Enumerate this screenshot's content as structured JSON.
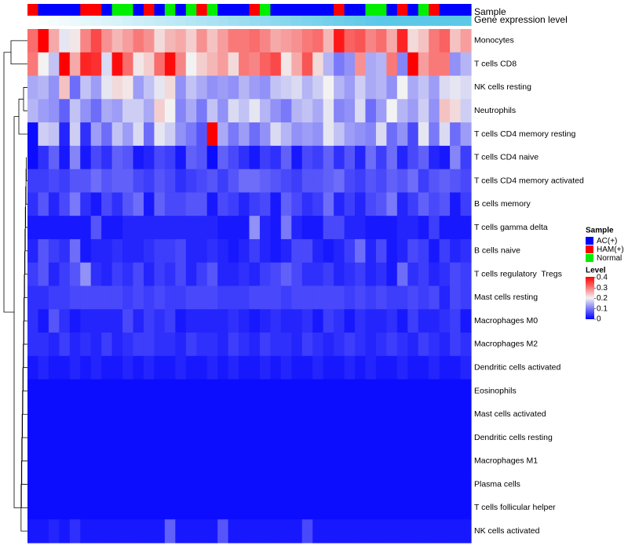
{
  "chart_data": {
    "type": "heatmap",
    "annotations": [
      {
        "name": "Sample",
        "kind": "categorical"
      },
      {
        "name": "Gene expression level",
        "kind": "continuous"
      }
    ],
    "sample_groups": [
      "HAM",
      "AC",
      "AC",
      "AC",
      "AC",
      "HAM",
      "HAM",
      "AC",
      "Normal",
      "Normal",
      "AC",
      "HAM",
      "AC",
      "Normal",
      "AC",
      "Normal",
      "HAM",
      "Normal",
      "AC",
      "AC",
      "AC",
      "HAM",
      "Normal",
      "AC",
      "AC",
      "AC",
      "AC",
      "AC",
      "AC",
      "HAM",
      "AC",
      "AC",
      "Normal",
      "Normal",
      "AC",
      "HAM",
      "AC",
      "Normal",
      "HAM",
      "AC",
      "AC",
      "AC"
    ],
    "expression_gradient": [
      0.0,
      1.0
    ],
    "rows": [
      "Monocytes",
      "T cells CD8",
      "NK cells resting",
      "Neutrophils",
      "T cells CD4 memory resting",
      "T cells CD4 naive",
      "T cells CD4 memory activated",
      "B cells memory",
      "T cells gamma delta",
      "B cells naive",
      "T cells regulatory  Tregs",
      "Mast cells resting",
      "Macrophages M0",
      "Macrophages M2",
      "Dendritic cells activated",
      "Eosinophils",
      "Mast cells activated",
      "Dendritic cells resting",
      "Macrophages M1",
      "Plasma cells",
      "T cells follicular helper",
      "NK cells activated"
    ],
    "values": [
      [
        0.31,
        0.4,
        0.26,
        0.19,
        0.21,
        0.29,
        0.34,
        0.28,
        0.25,
        0.27,
        0.3,
        0.28,
        0.22,
        0.25,
        0.26,
        0.23,
        0.28,
        0.24,
        0.27,
        0.3,
        0.3,
        0.31,
        0.29,
        0.26,
        0.27,
        0.28,
        0.3,
        0.31,
        0.25,
        0.38,
        0.32,
        0.33,
        0.29,
        0.31,
        0.26,
        0.37,
        0.22,
        0.24,
        0.3,
        0.32,
        0.24,
        0.27
      ],
      [
        0.3,
        0.2,
        0.16,
        0.4,
        0.26,
        0.37,
        0.36,
        0.18,
        0.39,
        0.31,
        0.21,
        0.23,
        0.31,
        0.39,
        0.29,
        0.2,
        0.23,
        0.25,
        0.27,
        0.22,
        0.3,
        0.29,
        0.32,
        0.34,
        0.21,
        0.26,
        0.33,
        0.22,
        0.15,
        0.1,
        0.12,
        0.28,
        0.14,
        0.15,
        0.3,
        0.11,
        0.4,
        0.27,
        0.3,
        0.3,
        0.12,
        0.15
      ],
      [
        0.14,
        0.15,
        0.12,
        0.24,
        0.09,
        0.16,
        0.13,
        0.19,
        0.22,
        0.21,
        0.13,
        0.16,
        0.19,
        0.22,
        0.12,
        0.16,
        0.14,
        0.12,
        0.13,
        0.12,
        0.15,
        0.13,
        0.12,
        0.16,
        0.17,
        0.18,
        0.15,
        0.17,
        0.2,
        0.15,
        0.13,
        0.17,
        0.14,
        0.15,
        0.12,
        0.2,
        0.14,
        0.16,
        0.13,
        0.18,
        0.19,
        0.18
      ],
      [
        0.15,
        0.13,
        0.12,
        0.08,
        0.16,
        0.12,
        0.09,
        0.14,
        0.13,
        0.17,
        0.17,
        0.14,
        0.23,
        0.2,
        0.11,
        0.14,
        0.1,
        0.16,
        0.12,
        0.18,
        0.16,
        0.19,
        0.15,
        0.12,
        0.1,
        0.15,
        0.16,
        0.14,
        0.19,
        0.11,
        0.12,
        0.18,
        0.09,
        0.13,
        0.2,
        0.15,
        0.13,
        0.17,
        0.12,
        0.24,
        0.22,
        0.17
      ],
      [
        0.01,
        0.17,
        0.16,
        0.03,
        0.17,
        0.04,
        0.13,
        0.09,
        0.16,
        0.13,
        0.18,
        0.09,
        0.19,
        0.17,
        0.12,
        0.1,
        0.07,
        0.4,
        0.14,
        0.1,
        0.13,
        0.09,
        0.12,
        0.18,
        0.15,
        0.12,
        0.13,
        0.12,
        0.19,
        0.16,
        0.13,
        0.12,
        0.11,
        0.18,
        0.09,
        0.12,
        0.06,
        0.19,
        0.1,
        0.18,
        0.09,
        0.13
      ],
      [
        0.01,
        0.04,
        0.08,
        0.02,
        0.11,
        0.02,
        0.06,
        0.04,
        0.08,
        0.07,
        0.02,
        0.03,
        0.06,
        0.05,
        0.02,
        0.08,
        0.07,
        0.01,
        0.08,
        0.06,
        0.04,
        0.02,
        0.05,
        0.04,
        0.08,
        0.02,
        0.06,
        0.05,
        0.08,
        0.04,
        0.07,
        0.03,
        0.09,
        0.05,
        0.09,
        0.03,
        0.06,
        0.08,
        0.03,
        0.02,
        0.11,
        0.05
      ],
      [
        0.05,
        0.05,
        0.06,
        0.05,
        0.07,
        0.07,
        0.09,
        0.07,
        0.08,
        0.08,
        0.06,
        0.05,
        0.07,
        0.06,
        0.04,
        0.05,
        0.06,
        0.07,
        0.05,
        0.07,
        0.09,
        0.09,
        0.08,
        0.07,
        0.06,
        0.05,
        0.07,
        0.07,
        0.08,
        0.09,
        0.06,
        0.05,
        0.07,
        0.06,
        0.08,
        0.07,
        0.09,
        0.05,
        0.07,
        0.08,
        0.07,
        0.06
      ],
      [
        0.04,
        0.07,
        0.03,
        0.06,
        0.1,
        0.04,
        0.02,
        0.06,
        0.04,
        0.07,
        0.09,
        0.02,
        0.08,
        0.06,
        0.06,
        0.07,
        0.07,
        0.02,
        0.06,
        0.05,
        0.03,
        0.05,
        0.06,
        0.02,
        0.08,
        0.06,
        0.04,
        0.05,
        0.09,
        0.03,
        0.05,
        0.03,
        0.06,
        0.07,
        0.1,
        0.03,
        0.05,
        0.08,
        0.06,
        0.07,
        0.02,
        0.05
      ],
      [
        0.02,
        0.02,
        0.02,
        0.02,
        0.02,
        0.02,
        0.07,
        0.02,
        0.02,
        0.03,
        0.03,
        0.03,
        0.03,
        0.03,
        0.03,
        0.03,
        0.03,
        0.03,
        0.02,
        0.02,
        0.02,
        0.12,
        0.03,
        0.02,
        0.1,
        0.03,
        0.02,
        0.02,
        0.06,
        0.06,
        0.03,
        0.03,
        0.02,
        0.02,
        0.02,
        0.03,
        0.03,
        0.02,
        0.05,
        0.02,
        0.02,
        0.02
      ],
      [
        0.03,
        0.07,
        0.05,
        0.04,
        0.09,
        0.02,
        0.03,
        0.03,
        0.04,
        0.03,
        0.03,
        0.04,
        0.05,
        0.05,
        0.06,
        0.03,
        0.03,
        0.04,
        0.03,
        0.02,
        0.03,
        0.05,
        0.03,
        0.02,
        0.03,
        0.06,
        0.06,
        0.03,
        0.02,
        0.03,
        0.05,
        0.09,
        0.03,
        0.06,
        0.02,
        0.03,
        0.06,
        0.05,
        0.02,
        0.05,
        0.03,
        0.04
      ],
      [
        0.05,
        0.07,
        0.03,
        0.05,
        0.07,
        0.12,
        0.04,
        0.03,
        0.05,
        0.04,
        0.06,
        0.03,
        0.05,
        0.04,
        0.06,
        0.03,
        0.05,
        0.07,
        0.03,
        0.03,
        0.04,
        0.03,
        0.05,
        0.06,
        0.08,
        0.06,
        0.04,
        0.04,
        0.05,
        0.03,
        0.04,
        0.05,
        0.03,
        0.04,
        0.02,
        0.09,
        0.04,
        0.05,
        0.03,
        0.04,
        0.06,
        0.05
      ],
      [
        0.04,
        0.04,
        0.05,
        0.05,
        0.06,
        0.06,
        0.06,
        0.06,
        0.06,
        0.05,
        0.06,
        0.05,
        0.06,
        0.05,
        0.05,
        0.06,
        0.06,
        0.06,
        0.05,
        0.05,
        0.05,
        0.06,
        0.06,
        0.06,
        0.05,
        0.06,
        0.06,
        0.06,
        0.06,
        0.06,
        0.05,
        0.06,
        0.05,
        0.06,
        0.05,
        0.05,
        0.06,
        0.05,
        0.06,
        0.03,
        0.06,
        0.05
      ],
      [
        0.04,
        0.02,
        0.07,
        0.04,
        0.02,
        0.03,
        0.03,
        0.03,
        0.03,
        0.06,
        0.03,
        0.05,
        0.04,
        0.05,
        0.02,
        0.03,
        0.03,
        0.03,
        0.03,
        0.04,
        0.03,
        0.02,
        0.03,
        0.04,
        0.03,
        0.03,
        0.04,
        0.02,
        0.05,
        0.04,
        0.02,
        0.04,
        0.03,
        0.03,
        0.04,
        0.02,
        0.05,
        0.03,
        0.03,
        0.04,
        0.05,
        0.02
      ],
      [
        0.04,
        0.04,
        0.03,
        0.05,
        0.03,
        0.04,
        0.03,
        0.05,
        0.03,
        0.04,
        0.05,
        0.05,
        0.04,
        0.04,
        0.03,
        0.05,
        0.04,
        0.04,
        0.03,
        0.05,
        0.04,
        0.03,
        0.05,
        0.04,
        0.04,
        0.03,
        0.05,
        0.04,
        0.03,
        0.04,
        0.05,
        0.04,
        0.03,
        0.04,
        0.05,
        0.04,
        0.03,
        0.05,
        0.04,
        0.03,
        0.05,
        0.04
      ],
      [
        0.02,
        0.03,
        0.02,
        0.02,
        0.03,
        0.02,
        0.03,
        0.02,
        0.02,
        0.03,
        0.02,
        0.03,
        0.02,
        0.02,
        0.03,
        0.02,
        0.02,
        0.03,
        0.02,
        0.03,
        0.02,
        0.02,
        0.03,
        0.02,
        0.03,
        0.02,
        0.02,
        0.03,
        0.02,
        0.02,
        0.03,
        0.02,
        0.03,
        0.02,
        0.02,
        0.03,
        0.02,
        0.02,
        0.03,
        0.02,
        0.02,
        0.03
      ],
      [
        0.01,
        0.01,
        0.01,
        0.01,
        0.01,
        0.01,
        0.01,
        0.01,
        0.01,
        0.01,
        0.01,
        0.01,
        0.01,
        0.01,
        0.01,
        0.01,
        0.01,
        0.01,
        0.01,
        0.01,
        0.01,
        0.01,
        0.01,
        0.01,
        0.01,
        0.01,
        0.01,
        0.01,
        0.01,
        0.01,
        0.01,
        0.01,
        0.01,
        0.01,
        0.01,
        0.01,
        0.01,
        0.01,
        0.01,
        0.01,
        0.01,
        0.01
      ],
      [
        0.01,
        0.01,
        0.01,
        0.01,
        0.01,
        0.01,
        0.01,
        0.01,
        0.01,
        0.01,
        0.01,
        0.01,
        0.01,
        0.01,
        0.01,
        0.01,
        0.01,
        0.01,
        0.01,
        0.01,
        0.01,
        0.01,
        0.01,
        0.01,
        0.01,
        0.01,
        0.01,
        0.01,
        0.01,
        0.01,
        0.01,
        0.01,
        0.01,
        0.01,
        0.01,
        0.01,
        0.01,
        0.01,
        0.01,
        0.01,
        0.01,
        0.01
      ],
      [
        0.01,
        0.01,
        0.01,
        0.01,
        0.01,
        0.01,
        0.01,
        0.01,
        0.01,
        0.01,
        0.01,
        0.01,
        0.01,
        0.01,
        0.01,
        0.01,
        0.01,
        0.01,
        0.01,
        0.01,
        0.01,
        0.01,
        0.01,
        0.01,
        0.01,
        0.01,
        0.01,
        0.01,
        0.01,
        0.01,
        0.01,
        0.01,
        0.01,
        0.01,
        0.01,
        0.01,
        0.01,
        0.01,
        0.01,
        0.01,
        0.01,
        0.01
      ],
      [
        0.01,
        0.01,
        0.01,
        0.01,
        0.01,
        0.01,
        0.01,
        0.01,
        0.01,
        0.01,
        0.01,
        0.01,
        0.01,
        0.01,
        0.01,
        0.01,
        0.01,
        0.01,
        0.01,
        0.01,
        0.01,
        0.01,
        0.01,
        0.01,
        0.01,
        0.01,
        0.01,
        0.01,
        0.01,
        0.01,
        0.01,
        0.01,
        0.01,
        0.01,
        0.01,
        0.01,
        0.01,
        0.01,
        0.01,
        0.01,
        0.01,
        0.01
      ],
      [
        0.01,
        0.01,
        0.01,
        0.01,
        0.01,
        0.01,
        0.01,
        0.01,
        0.01,
        0.01,
        0.01,
        0.01,
        0.01,
        0.01,
        0.01,
        0.01,
        0.01,
        0.01,
        0.01,
        0.01,
        0.01,
        0.01,
        0.01,
        0.01,
        0.01,
        0.01,
        0.01,
        0.01,
        0.01,
        0.01,
        0.01,
        0.01,
        0.01,
        0.01,
        0.01,
        0.01,
        0.01,
        0.01,
        0.01,
        0.01,
        0.01,
        0.01
      ],
      [
        0.01,
        0.01,
        0.01,
        0.01,
        0.01,
        0.01,
        0.01,
        0.01,
        0.01,
        0.01,
        0.01,
        0.01,
        0.01,
        0.01,
        0.01,
        0.01,
        0.01,
        0.01,
        0.01,
        0.01,
        0.01,
        0.01,
        0.01,
        0.01,
        0.01,
        0.01,
        0.01,
        0.01,
        0.01,
        0.01,
        0.01,
        0.01,
        0.01,
        0.01,
        0.01,
        0.01,
        0.01,
        0.01,
        0.01,
        0.01,
        0.01,
        0.01
      ],
      [
        0.02,
        0.02,
        0.03,
        0.02,
        0.04,
        0.02,
        0.02,
        0.02,
        0.02,
        0.02,
        0.02,
        0.02,
        0.02,
        0.08,
        0.02,
        0.02,
        0.02,
        0.02,
        0.07,
        0.02,
        0.02,
        0.02,
        0.02,
        0.02,
        0.02,
        0.02,
        0.06,
        0.02,
        0.02,
        0.02,
        0.02,
        0.02,
        0.02,
        0.02,
        0.02,
        0.02,
        0.02,
        0.02,
        0.02,
        0.02,
        0.02,
        0.02
      ]
    ],
    "color_scale": {
      "title": "Level",
      "domain": [
        0,
        0.4
      ],
      "ticks": [
        "0.4",
        "0.3",
        "0.2",
        "0.1",
        "0"
      ],
      "low": "#0000ff",
      "mid": "#f2f2f2",
      "high": "#ff0000"
    },
    "legend": {
      "title": "Sample",
      "items": [
        {
          "label": "AC(+)",
          "key": "AC",
          "color": "#0000ff"
        },
        {
          "label": "HAM(+)",
          "key": "HAM",
          "color": "#ff0000"
        },
        {
          "label": "Normal",
          "key": "Normal",
          "color": "#00ee00"
        }
      ]
    },
    "row_dendrogram": "hierarchical clustering (left)"
  },
  "colors": {
    "expression_low": "#ffffff",
    "expression_high": "#5bc8e8"
  }
}
